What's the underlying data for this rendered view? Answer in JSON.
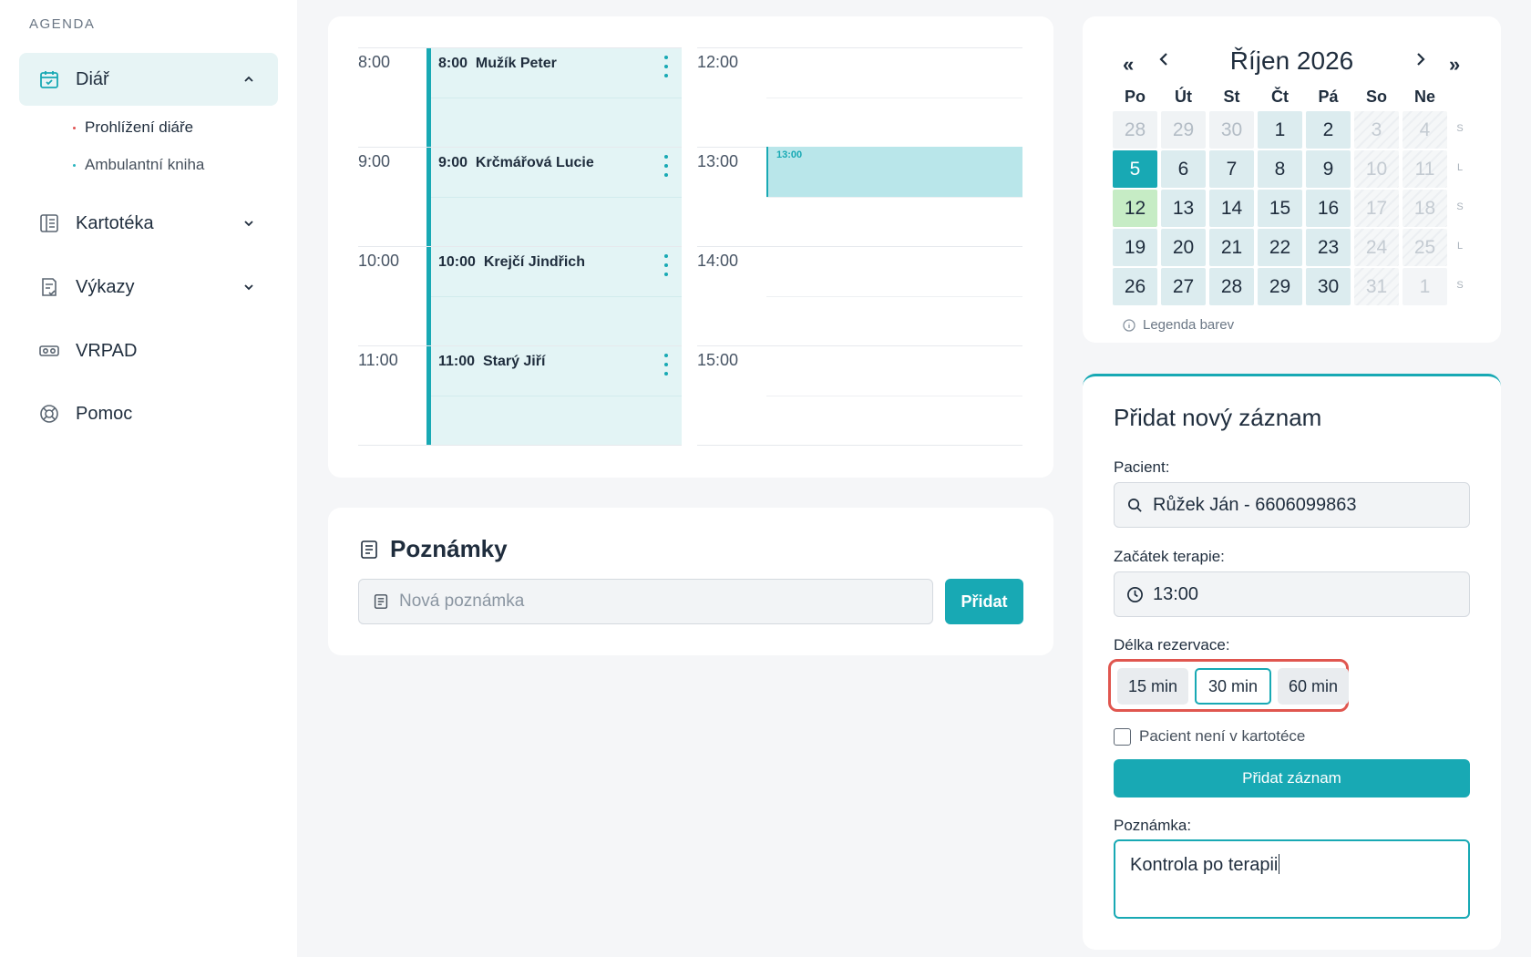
{
  "sidebar": {
    "section": "AGENDA",
    "items": [
      {
        "label": "Diář",
        "icon": "calendar-check-icon",
        "expanded": true
      },
      {
        "label": "Kartotéka",
        "icon": "index-card-icon",
        "expanded": false
      },
      {
        "label": "Výkazy",
        "icon": "report-icon",
        "expanded": false
      },
      {
        "label": "VRPAD",
        "icon": "vr-goggles-icon"
      },
      {
        "label": "Pomoc",
        "icon": "lifebuoy-icon"
      }
    ],
    "sub": [
      {
        "label": "Prohlížení diáře",
        "current": true
      },
      {
        "label": "Ambulantní kniha",
        "current": false
      }
    ]
  },
  "schedule": {
    "left_hours": [
      "8:00",
      "9:00",
      "10:00",
      "11:00"
    ],
    "right_hours": [
      "12:00",
      "13:00",
      "14:00",
      "15:00"
    ],
    "appointments": [
      {
        "time": "8:00",
        "name": "Mužík Peter"
      },
      {
        "time": "9:00",
        "name": "Krčmářová Lucie"
      },
      {
        "time": "10:00",
        "name": "Krejčí Jindřich"
      },
      {
        "time": "11:00",
        "name": "Starý Jiří"
      }
    ],
    "new_slot_label": "13:00"
  },
  "notes": {
    "title": "Poznámky",
    "placeholder": "Nová poznámka",
    "add_label": "Přidat"
  },
  "calendar": {
    "nav": {
      "prev_year": "«",
      "prev_month": "‹",
      "next_month": "›",
      "next_year": "»"
    },
    "title": "Říjen 2026",
    "weekdays": [
      "Po",
      "Út",
      "St",
      "Čt",
      "Pá",
      "So",
      "Ne"
    ],
    "weeks": [
      [
        "28",
        "29",
        "30",
        "1",
        "2",
        "3",
        "4"
      ],
      [
        "5",
        "6",
        "7",
        "8",
        "9",
        "10",
        "11"
      ],
      [
        "12",
        "13",
        "14",
        "15",
        "16",
        "17",
        "18"
      ],
      [
        "19",
        "20",
        "21",
        "22",
        "23",
        "24",
        "25"
      ],
      [
        "26",
        "27",
        "28",
        "29",
        "30",
        "31",
        "1"
      ]
    ],
    "week_letters": [
      "S",
      "L",
      "S",
      "L",
      "S"
    ],
    "legend": "Legenda barev",
    "colors": {
      "today": "#18a9b4",
      "highlight": "#c6ecc5",
      "month_day": "#dcecef"
    }
  },
  "form": {
    "title": "Přidat nový záznam",
    "patient_label": "Pacient:",
    "patient_value": "Růžek Ján - 6606099863",
    "start_label": "Začátek terapie:",
    "start_value": "13:00",
    "duration_label": "Délka rezervace:",
    "durations": [
      "15 min",
      "30 min",
      "60 min"
    ],
    "duration_selected": "30 min",
    "not_in_register_label": "Pacient není v kartotéce",
    "submit_label": "Přidat záznam",
    "note_label": "Poznámka:",
    "note_value": "Kontrola po terapii"
  },
  "colors": {
    "accent": "#18a9b4",
    "highlight_box": "#e0564f"
  }
}
